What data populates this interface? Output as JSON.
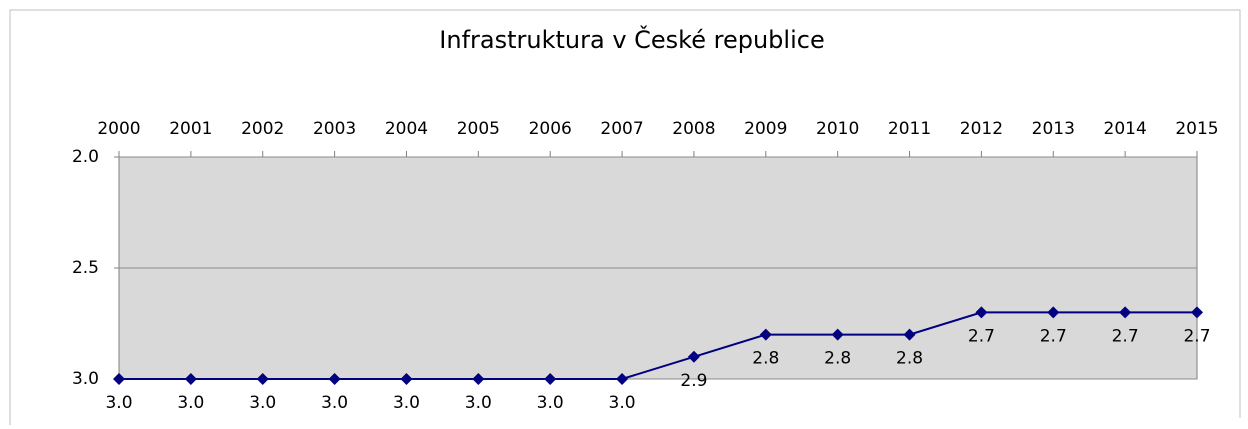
{
  "chart_data": {
    "type": "line",
    "title": "Infrastruktura v  České republice",
    "categories": [
      "2000",
      "2001",
      "2002",
      "2003",
      "2004",
      "2005",
      "2006",
      "2007",
      "2008",
      "2009",
      "2010",
      "2011",
      "2012",
      "2013",
      "2014",
      "2015"
    ],
    "series": [
      {
        "name": "Infrastruktura",
        "color": "#000080",
        "values": [
          3.0,
          3.0,
          3.0,
          3.0,
          3.0,
          3.0,
          3.0,
          3.0,
          2.9,
          2.8,
          2.8,
          2.8,
          2.7,
          2.7,
          2.7,
          2.7
        ],
        "value_labels": [
          "3.0",
          "3.0",
          "3.0",
          "3.0",
          "3.0",
          "3.0",
          "3.0",
          "3.0",
          "2.9",
          "2.8",
          "2.8",
          "2.8",
          "2.7",
          "2.7",
          "2.7",
          "2.7"
        ]
      }
    ],
    "ylim": [
      2.0,
      3.0
    ],
    "y_inverted": true,
    "yticks": [
      {
        "value": 2.0,
        "label": "2.0"
      },
      {
        "value": 2.5,
        "label": "2.5"
      },
      {
        "value": 3.0,
        "label": "3.0"
      }
    ],
    "grid": true,
    "plot_background": "#d9d9d9"
  }
}
